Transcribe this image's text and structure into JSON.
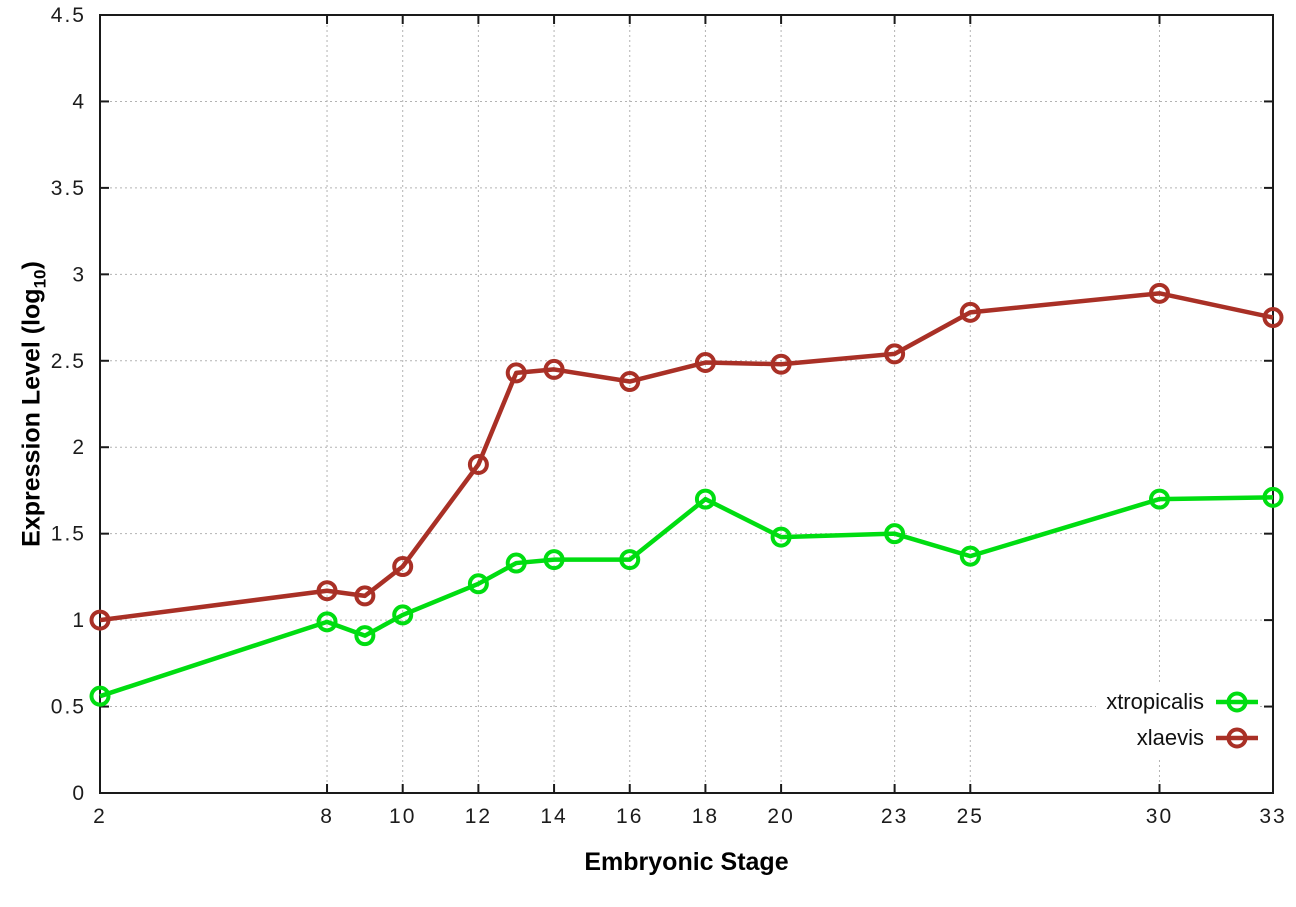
{
  "figure": {
    "ylabel_main": "Expression Level (log",
    "ylabel_sub": "10",
    "ylabel_close": ")"
  },
  "chart_data": {
    "type": "line",
    "xlabel": "Embryonic Stage",
    "ylabel": "Expression Level (log10)",
    "xlim": [
      2,
      33
    ],
    "ylim": [
      0,
      4.5
    ],
    "grid": "dotted-both-axes",
    "legend_position": "inside-bottom-right",
    "marker": "open-circle",
    "xticks": [
      2,
      8,
      10,
      12,
      14,
      16,
      18,
      20,
      23,
      25,
      30,
      33
    ],
    "yticks": [
      0,
      0.5,
      1,
      1.5,
      2,
      2.5,
      3,
      3.5,
      4,
      4.5
    ],
    "ytick_labels": [
      "0",
      "0.5",
      "1",
      "1.5",
      "2",
      "2.5",
      "3",
      "3.5",
      "4",
      "4.5"
    ],
    "x": [
      2,
      8,
      9,
      10,
      12,
      13,
      14,
      16,
      18,
      20,
      23,
      25,
      30,
      33
    ],
    "series": [
      {
        "name": "xtropicalis",
        "color": "#00dd11",
        "values": [
          0.56,
          0.99,
          0.91,
          1.03,
          1.21,
          1.33,
          1.35,
          1.35,
          1.7,
          1.48,
          1.5,
          1.37,
          1.7,
          1.71
        ]
      },
      {
        "name": "xlaevis",
        "color": "#a93026",
        "values": [
          1.0,
          1.17,
          1.14,
          1.31,
          1.9,
          2.43,
          2.45,
          2.38,
          2.49,
          2.48,
          2.54,
          2.78,
          2.89,
          2.75
        ]
      }
    ]
  }
}
